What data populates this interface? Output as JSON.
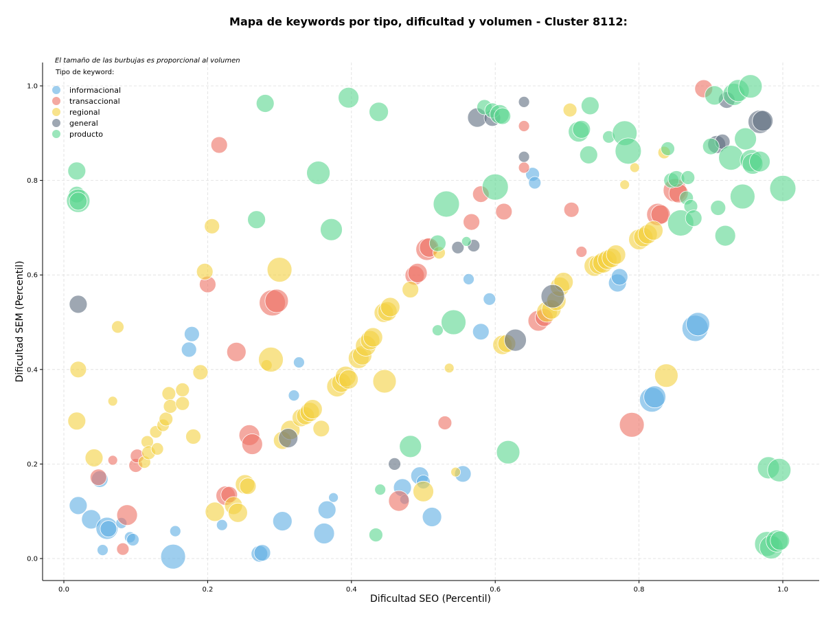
{
  "chart_data": {
    "type": "scatter",
    "title": "Mapa de keywords por tipo, dificultad y volumen - Cluster 8112:",
    "xlabel": "Dificultad SEO (Percentil)",
    "ylabel": "Dificultad SEM (Percentil)",
    "note": "El tamaño de las burbujas es proporcional al volumen",
    "legend_title": "Tipo de keyword:",
    "legend_placement": "top-left",
    "grid": true,
    "xlim": [
      -0.03,
      1.05
    ],
    "ylim": [
      -0.045,
      1.05
    ],
    "x_ticks": [
      "0.0",
      "0.2",
      "0.4",
      "0.6",
      "0.8",
      "1.0"
    ],
    "y_ticks": [
      "0.0",
      "0.2",
      "0.4",
      "0.6",
      "0.8",
      "1.0"
    ],
    "series": [
      {
        "name": "informacional",
        "color": "#5dade2",
        "points": [
          [
            0.02,
            0.112,
            13
          ],
          [
            0.038,
            0.083,
            14
          ],
          [
            0.05,
            0.168,
            12
          ],
          [
            0.06,
            0.064,
            16
          ],
          [
            0.062,
            0.063,
            12
          ],
          [
            0.054,
            0.018,
            8
          ],
          [
            0.08,
            0.075,
            8
          ],
          [
            0.092,
            0.045,
            8
          ],
          [
            0.096,
            0.04,
            9
          ],
          [
            0.152,
            0.004,
            18
          ],
          [
            0.155,
            0.058,
            8
          ],
          [
            0.174,
            0.442,
            11
          ],
          [
            0.178,
            0.475,
            11
          ],
          [
            0.22,
            0.071,
            8
          ],
          [
            0.272,
            0.01,
            12
          ],
          [
            0.276,
            0.012,
            12
          ],
          [
            0.304,
            0.079,
            14
          ],
          [
            0.32,
            0.345,
            8
          ],
          [
            0.327,
            0.415,
            8
          ],
          [
            0.362,
            0.053,
            15
          ],
          [
            0.366,
            0.103,
            13
          ],
          [
            0.375,
            0.129,
            7
          ],
          [
            0.471,
            0.15,
            13
          ],
          [
            0.474,
            0.125,
            7
          ],
          [
            0.495,
            0.175,
            13
          ],
          [
            0.5,
            0.162,
            10
          ],
          [
            0.512,
            0.088,
            14
          ],
          [
            0.555,
            0.179,
            12
          ],
          [
            0.563,
            0.591,
            8
          ],
          [
            0.58,
            0.48,
            12
          ],
          [
            0.592,
            0.549,
            9
          ],
          [
            0.652,
            0.813,
            10
          ],
          [
            0.655,
            0.795,
            9
          ],
          [
            0.77,
            0.583,
            13
          ],
          [
            0.773,
            0.596,
            12
          ],
          [
            0.818,
            0.336,
            18
          ],
          [
            0.822,
            0.342,
            16
          ],
          [
            0.878,
            0.487,
            19
          ],
          [
            0.882,
            0.496,
            17
          ]
        ]
      },
      {
        "name": "transaccional",
        "color": "#ec7063",
        "points": [
          [
            0.048,
            0.172,
            12
          ],
          [
            0.068,
            0.208,
            7
          ],
          [
            0.082,
            0.02,
            9
          ],
          [
            0.088,
            0.092,
            15
          ],
          [
            0.1,
            0.197,
            10
          ],
          [
            0.102,
            0.217,
            10
          ],
          [
            0.2,
            0.58,
            12
          ],
          [
            0.216,
            0.875,
            12
          ],
          [
            0.225,
            0.133,
            14
          ],
          [
            0.23,
            0.135,
            12
          ],
          [
            0.24,
            0.437,
            14
          ],
          [
            0.258,
            0.261,
            15
          ],
          [
            0.262,
            0.242,
            15
          ],
          [
            0.29,
            0.541,
            19
          ],
          [
            0.296,
            0.545,
            17
          ],
          [
            0.466,
            0.122,
            15
          ],
          [
            0.488,
            0.599,
            14
          ],
          [
            0.492,
            0.604,
            14
          ],
          [
            0.505,
            0.654,
            16
          ],
          [
            0.508,
            0.658,
            14
          ],
          [
            0.53,
            0.287,
            10
          ],
          [
            0.567,
            0.712,
            12
          ],
          [
            0.58,
            0.771,
            12
          ],
          [
            0.612,
            0.734,
            12
          ],
          [
            0.64,
            0.915,
            8
          ],
          [
            0.64,
            0.827,
            8
          ],
          [
            0.66,
            0.503,
            15
          ],
          [
            0.668,
            0.51,
            13
          ],
          [
            0.706,
            0.738,
            11
          ],
          [
            0.72,
            0.649,
            8
          ],
          [
            0.79,
            0.283,
            18
          ],
          [
            0.826,
            0.728,
            16
          ],
          [
            0.83,
            0.728,
            14
          ],
          [
            0.85,
            0.779,
            17
          ],
          [
            0.855,
            0.773,
            14
          ],
          [
            0.89,
            0.994,
            13
          ]
        ]
      },
      {
        "name": "regional",
        "color": "#f4d03f",
        "points": [
          [
            0.018,
            0.291,
            13
          ],
          [
            0.02,
            0.4,
            12
          ],
          [
            0.042,
            0.213,
            13
          ],
          [
            0.068,
            0.333,
            7
          ],
          [
            0.075,
            0.49,
            9
          ],
          [
            0.112,
            0.204,
            9
          ],
          [
            0.116,
            0.247,
            9
          ],
          [
            0.118,
            0.224,
            10
          ],
          [
            0.128,
            0.268,
            9
          ],
          [
            0.13,
            0.232,
            9
          ],
          [
            0.138,
            0.282,
            9
          ],
          [
            0.142,
            0.295,
            10
          ],
          [
            0.146,
            0.349,
            10
          ],
          [
            0.148,
            0.322,
            10
          ],
          [
            0.165,
            0.357,
            10
          ],
          [
            0.165,
            0.328,
            10
          ],
          [
            0.18,
            0.258,
            11
          ],
          [
            0.19,
            0.394,
            11
          ],
          [
            0.196,
            0.607,
            12
          ],
          [
            0.206,
            0.703,
            11
          ],
          [
            0.21,
            0.099,
            14
          ],
          [
            0.236,
            0.112,
            13
          ],
          [
            0.242,
            0.097,
            14
          ],
          [
            0.252,
            0.157,
            14
          ],
          [
            0.256,
            0.153,
            12
          ],
          [
            0.282,
            0.409,
            8
          ],
          [
            0.288,
            0.421,
            18
          ],
          [
            0.3,
            0.611,
            18
          ],
          [
            0.304,
            0.25,
            13
          ],
          [
            0.315,
            0.272,
            14
          ],
          [
            0.33,
            0.298,
            13
          ],
          [
            0.336,
            0.302,
            13
          ],
          [
            0.342,
            0.31,
            14
          ],
          [
            0.346,
            0.316,
            14
          ],
          [
            0.358,
            0.275,
            12
          ],
          [
            0.38,
            0.364,
            15
          ],
          [
            0.386,
            0.372,
            14
          ],
          [
            0.392,
            0.385,
            15
          ],
          [
            0.396,
            0.379,
            14
          ],
          [
            0.41,
            0.424,
            15
          ],
          [
            0.415,
            0.43,
            14
          ],
          [
            0.42,
            0.45,
            15
          ],
          [
            0.426,
            0.462,
            14
          ],
          [
            0.43,
            0.468,
            14
          ],
          [
            0.445,
            0.52,
            14
          ],
          [
            0.45,
            0.523,
            14
          ],
          [
            0.454,
            0.532,
            14
          ],
          [
            0.446,
            0.375,
            17
          ],
          [
            0.482,
            0.569,
            12
          ],
          [
            0.522,
            0.647,
            9
          ],
          [
            0.536,
            0.403,
            7
          ],
          [
            0.545,
            0.183,
            7
          ],
          [
            0.5,
            0.142,
            15
          ],
          [
            0.61,
            0.452,
            14
          ],
          [
            0.616,
            0.455,
            13
          ],
          [
            0.672,
            0.522,
            15
          ],
          [
            0.678,
            0.527,
            14
          ],
          [
            0.685,
            0.545,
            14
          ],
          [
            0.69,
            0.575,
            14
          ],
          [
            0.695,
            0.585,
            14
          ],
          [
            0.704,
            0.949,
            10
          ],
          [
            0.738,
            0.619,
            15
          ],
          [
            0.744,
            0.622,
            14
          ],
          [
            0.75,
            0.626,
            15
          ],
          [
            0.756,
            0.632,
            14
          ],
          [
            0.762,
            0.636,
            14
          ],
          [
            0.768,
            0.643,
            14
          ],
          [
            0.78,
            0.791,
            7
          ],
          [
            0.794,
            0.827,
            7
          ],
          [
            0.8,
            0.675,
            15
          ],
          [
            0.806,
            0.68,
            14
          ],
          [
            0.812,
            0.686,
            14
          ],
          [
            0.82,
            0.694,
            14
          ],
          [
            0.835,
            0.859,
            9
          ],
          [
            0.838,
            0.387,
            17
          ]
        ]
      },
      {
        "name": "general",
        "color": "#5d6d7e",
        "points": [
          [
            0.02,
            0.538,
            13
          ],
          [
            0.312,
            0.255,
            14
          ],
          [
            0.46,
            0.2,
            9
          ],
          [
            0.548,
            0.658,
            9
          ],
          [
            0.57,
            0.662,
            9
          ],
          [
            0.575,
            0.933,
            14
          ],
          [
            0.596,
            0.932,
            12
          ],
          [
            0.628,
            0.462,
            16
          ],
          [
            0.64,
            0.966,
            8
          ],
          [
            0.64,
            0.85,
            8
          ],
          [
            0.68,
            0.555,
            17
          ],
          [
            0.908,
            0.876,
            13
          ],
          [
            0.916,
            0.882,
            11
          ],
          [
            0.922,
            0.97,
            12
          ],
          [
            0.968,
            0.924,
            17
          ],
          [
            0.972,
            0.926,
            15
          ]
        ]
      },
      {
        "name": "producto",
        "color": "#58d68d",
        "points": [
          [
            0.018,
            0.82,
            13
          ],
          [
            0.018,
            0.77,
            12
          ],
          [
            0.02,
            0.757,
            17
          ],
          [
            0.02,
            0.756,
            13
          ],
          [
            0.268,
            0.717,
            13
          ],
          [
            0.28,
            0.963,
            13
          ],
          [
            0.354,
            0.816,
            17
          ],
          [
            0.372,
            0.696,
            16
          ],
          [
            0.396,
            0.975,
            15
          ],
          [
            0.438,
            0.945,
            14
          ],
          [
            0.44,
            0.146,
            8
          ],
          [
            0.434,
            0.05,
            10
          ],
          [
            0.482,
            0.237,
            16
          ],
          [
            0.52,
            0.483,
            8
          ],
          [
            0.52,
            0.667,
            12
          ],
          [
            0.532,
            0.75,
            19
          ],
          [
            0.542,
            0.5,
            18
          ],
          [
            0.56,
            0.671,
            7
          ],
          [
            0.585,
            0.955,
            11
          ],
          [
            0.596,
            0.948,
            11
          ],
          [
            0.606,
            0.94,
            14
          ],
          [
            0.61,
            0.936,
            12
          ],
          [
            0.6,
            0.786,
            19
          ],
          [
            0.618,
            0.225,
            17
          ],
          [
            0.716,
            0.903,
            15
          ],
          [
            0.72,
            0.908,
            13
          ],
          [
            0.73,
            0.854,
            13
          ],
          [
            0.732,
            0.958,
            13
          ],
          [
            0.758,
            0.892,
            9
          ],
          [
            0.78,
            0.9,
            18
          ],
          [
            0.785,
            0.862,
            19
          ],
          [
            0.84,
            0.867,
            10
          ],
          [
            0.845,
            0.8,
            11
          ],
          [
            0.852,
            0.803,
            12
          ],
          [
            0.858,
            0.71,
            19
          ],
          [
            0.866,
            0.763,
            10
          ],
          [
            0.868,
            0.806,
            10
          ],
          [
            0.872,
            0.745,
            10
          ],
          [
            0.876,
            0.72,
            12
          ],
          [
            0.9,
            0.872,
            12
          ],
          [
            0.905,
            0.98,
            14
          ],
          [
            0.91,
            0.742,
            11
          ],
          [
            0.92,
            0.683,
            15
          ],
          [
            0.928,
            0.848,
            18
          ],
          [
            0.932,
            0.982,
            16
          ],
          [
            0.938,
            0.99,
            16
          ],
          [
            0.944,
            0.766,
            18
          ],
          [
            0.948,
            0.888,
            16
          ],
          [
            0.955,
            0.999,
            17
          ],
          [
            0.956,
            0.842,
            16
          ],
          [
            0.958,
            0.835,
            15
          ],
          [
            0.968,
            0.84,
            15
          ],
          [
            0.978,
            0.031,
            18
          ],
          [
            0.98,
            0.192,
            16
          ],
          [
            0.984,
            0.024,
            17
          ],
          [
            0.992,
            0.037,
            16
          ],
          [
            0.996,
            0.038,
            14
          ],
          [
            0.995,
            0.187,
            17
          ],
          [
            1.0,
            0.783,
            19
          ]
        ]
      }
    ]
  }
}
